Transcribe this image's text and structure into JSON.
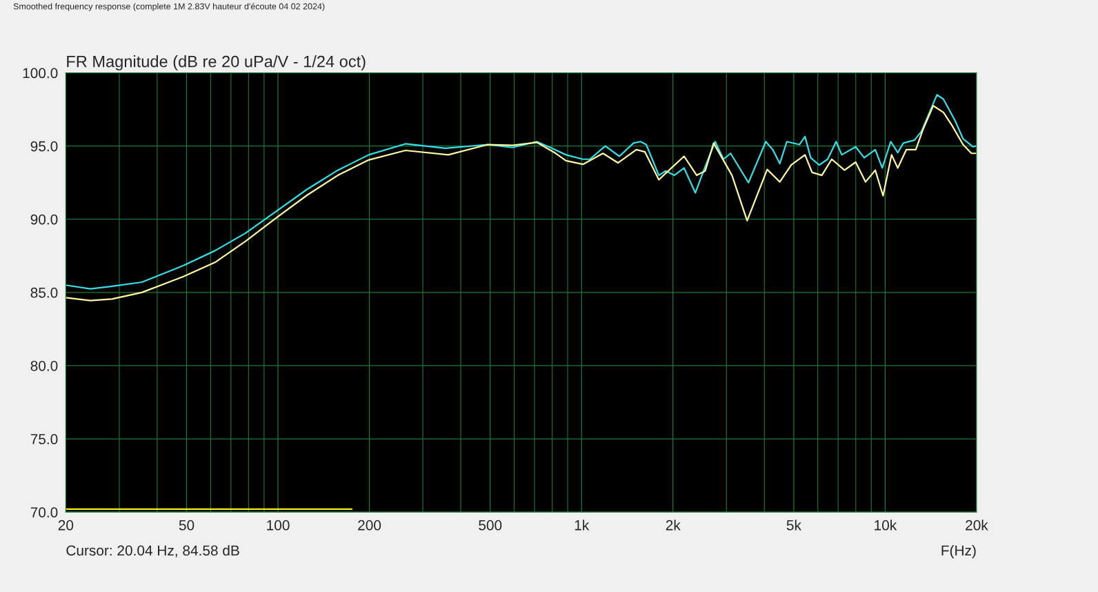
{
  "chart_data": {
    "type": "line",
    "title": "FR Magnitude (dB re 20 uPa/V - 1/24 oct)",
    "xlabel": "F(Hz)",
    "annotations": [
      "Smoothed frequency response (complete 1M 2.83V hauteur d'écoute 04 02 2024)",
      "Cursor: 20.04 Hz, 84.58 dB"
    ],
    "log": "x",
    "grid": true,
    "legend": false,
    "marker": "none",
    "line_style": "solid",
    "xlim": [
      20,
      20000
    ],
    "xticks": [
      20,
      50,
      100,
      200,
      500,
      {
        "value": 1000,
        "label": "1k"
      },
      {
        "value": 2000,
        "label": "2k"
      },
      {
        "value": 5000,
        "label": "5k"
      },
      {
        "value": 10000,
        "label": "10k"
      },
      {
        "value": 20000,
        "label": "20k"
      }
    ],
    "ylim": [
      70,
      100
    ],
    "yticks": [
      {
        "value": 70,
        "label": "70.0"
      },
      {
        "value": 75,
        "label": "75.0"
      },
      {
        "value": 80,
        "label": "80.0"
      },
      {
        "value": 85,
        "label": "85.0"
      },
      {
        "value": 90,
        "label": "90.0"
      },
      {
        "value": 95,
        "label": "95.0"
      },
      {
        "value": 100,
        "label": "100.0"
      }
    ],
    "series": [
      {
        "color": "#33e0e8",
        "x": [
          20,
          24.1,
          27.9,
          35.6,
          49,
          62,
          78.2,
          98.8,
          124.8,
          157.5,
          199,
          263,
          356,
          491,
          592,
          712,
          798,
          888,
          1010,
          1065,
          1197,
          1332,
          1483,
          1563,
          1633,
          1797,
          1893,
          2020,
          2176,
          2370,
          2554,
          2755,
          2934,
          3096,
          3546,
          4044,
          4265,
          4497,
          4744,
          5219,
          5444,
          5685,
          6061,
          6465,
          6895,
          7196,
          7994,
          8530,
          9278,
          9781,
          10434,
          11002,
          11480,
          12485,
          13169,
          14814,
          15556,
          16978,
          18048,
          19455,
          19900
        ],
        "values": [
          85.5,
          85.25,
          85.4,
          85.7,
          86.85,
          87.85,
          89.05,
          90.55,
          92.05,
          93.35,
          94.4,
          95.15,
          94.85,
          95.1,
          94.9,
          95.3,
          94.85,
          94.4,
          94.1,
          94.1,
          95.0,
          94.3,
          95.2,
          95.3,
          95.1,
          93.0,
          93.3,
          93.0,
          93.5,
          91.8,
          93.6,
          95.3,
          94.1,
          94.5,
          92.5,
          95.3,
          94.75,
          93.8,
          95.3,
          95.1,
          95.65,
          94.2,
          93.7,
          94.1,
          95.3,
          94.4,
          94.95,
          94.2,
          94.75,
          93.5,
          95.3,
          94.55,
          95.2,
          95.4,
          96.0,
          98.5,
          98.2,
          96.75,
          95.5,
          94.95,
          95.0
        ]
      },
      {
        "color": "#fff8a0",
        "x": [
          20,
          24.1,
          28.4,
          35.6,
          49,
          62,
          78.2,
          98.8,
          124.8,
          157.5,
          199,
          263,
          364,
          491,
          592,
          712,
          815,
          888,
          1010,
          1176,
          1318,
          1515,
          1617,
          1797,
          2000,
          2176,
          2395,
          2554,
          2722,
          3129,
          3510,
          4087,
          4497,
          4902,
          5444,
          5745,
          6186,
          6668,
          7347,
          7994,
          8619,
          9278,
          9841,
          10498,
          11002,
          11738,
          12615,
          13305,
          14397,
          15556,
          16604,
          18048,
          19241,
          19900
        ],
        "values": [
          84.65,
          84.45,
          84.55,
          85.0,
          86.1,
          87.05,
          88.5,
          90.1,
          91.65,
          93.0,
          94.05,
          94.7,
          94.4,
          95.1,
          95.05,
          95.25,
          94.55,
          94.0,
          93.75,
          94.5,
          93.85,
          94.75,
          94.6,
          92.7,
          93.6,
          94.3,
          93.0,
          93.3,
          95.2,
          93.0,
          89.9,
          93.4,
          92.55,
          93.7,
          94.4,
          93.2,
          93.0,
          94.1,
          93.35,
          93.9,
          92.55,
          93.35,
          91.6,
          94.4,
          93.5,
          94.75,
          94.75,
          96.1,
          97.75,
          97.3,
          96.4,
          95.1,
          94.5,
          94.5
        ]
      },
      {
        "color": "#f0f000",
        "x": [
          20,
          175
        ],
        "values": [
          70.2,
          70.2
        ]
      }
    ]
  }
}
